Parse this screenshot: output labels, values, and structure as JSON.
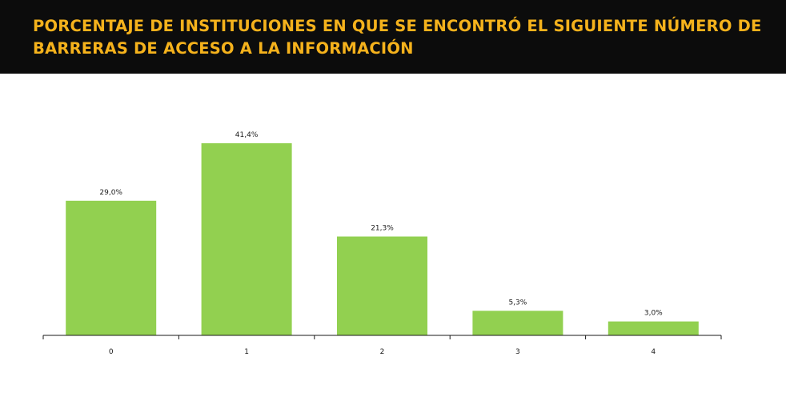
{
  "header": {
    "title": "PORCENTAJE DE INSTITUCIONES EN QUE SE ENCONTRÓ EL SIGUIENTE NÚMERO DE BARRERAS DE ACCESO A LA INFORMACIÓN"
  },
  "colors": {
    "header_background": "#0c0c0c",
    "title_text": "#f5b21c",
    "bar_fill": "#92d050",
    "axis": "#1a1a1a"
  },
  "chart_data": {
    "type": "bar",
    "title": "PORCENTAJE DE INSTITUCIONES EN QUE SE ENCONTRÓ EL SIGUIENTE NÚMERO DE BARRERAS DE ACCESO A LA INFORMACIÓN",
    "categories": [
      "0",
      "1",
      "2",
      "3",
      "4"
    ],
    "values": [
      29.0,
      41.4,
      21.3,
      5.3,
      3.0
    ],
    "data_labels": [
      "29,0%",
      "41,4%",
      "21,3%",
      "5,3%",
      "3,0%"
    ],
    "xlabel": "",
    "ylabel": "",
    "ylim": [
      0,
      45
    ],
    "grid": false,
    "legend": "none"
  }
}
